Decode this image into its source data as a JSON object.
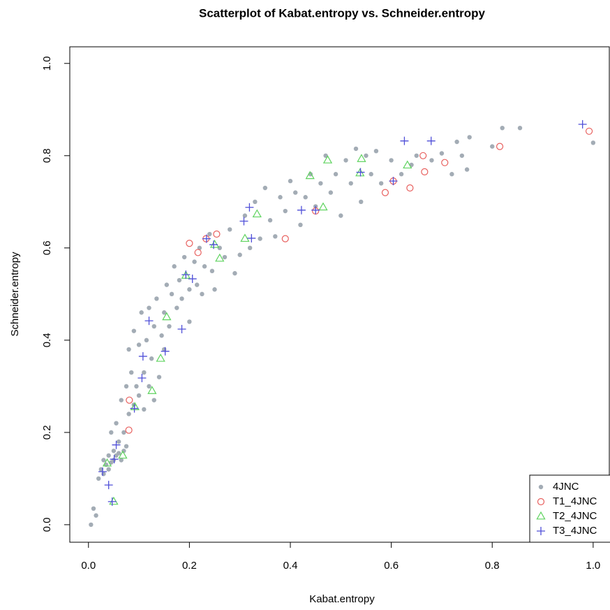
{
  "chart_data": {
    "type": "scatter",
    "title": "Scatterplot of Kabat.entropy vs.  Schneider.entropy",
    "x_label": "Kabat.entropy",
    "y_label": "Schneider.entropy",
    "xlim": [
      -0.037,
      1.032
    ],
    "ylim": [
      -0.038,
      1.036
    ],
    "xticks": [
      {
        "value": 0,
        "label": "0.0"
      },
      0.2,
      0.4,
      0.6,
      0.8,
      {
        "value": 1,
        "label": "1.0"
      }
    ],
    "yticks": [
      {
        "value": 0,
        "label": "0.0"
      },
      0.2,
      0.4,
      0.6,
      0.8,
      {
        "value": 1,
        "label": "1.0"
      }
    ],
    "legend": "bottomright",
    "series": [
      {
        "name": "4JNC",
        "color": "#a3acb5",
        "marker": "dot",
        "x": [
          0.005,
          0.01,
          0.015,
          0.02,
          0.025,
          0.03,
          0.03,
          0.035,
          0.04,
          0.04,
          0.045,
          0.045,
          0.05,
          0.05,
          0.055,
          0.055,
          0.06,
          0.06,
          0.065,
          0.065,
          0.07,
          0.07,
          0.075,
          0.075,
          0.08,
          0.08,
          0.085,
          0.09,
          0.09,
          0.095,
          0.1,
          0.1,
          0.105,
          0.11,
          0.11,
          0.115,
          0.12,
          0.12,
          0.125,
          0.13,
          0.13,
          0.135,
          0.14,
          0.145,
          0.15,
          0.15,
          0.155,
          0.16,
          0.165,
          0.17,
          0.175,
          0.18,
          0.185,
          0.19,
          0.2,
          0.2,
          0.21,
          0.215,
          0.22,
          0.225,
          0.23,
          0.24,
          0.245,
          0.25,
          0.26,
          0.27,
          0.28,
          0.29,
          0.3,
          0.31,
          0.32,
          0.33,
          0.34,
          0.35,
          0.36,
          0.37,
          0.38,
          0.39,
          0.4,
          0.41,
          0.42,
          0.43,
          0.44,
          0.45,
          0.46,
          0.47,
          0.48,
          0.49,
          0.5,
          0.51,
          0.52,
          0.53,
          0.54,
          0.55,
          0.56,
          0.57,
          0.58,
          0.6,
          0.62,
          0.64,
          0.65,
          0.68,
          0.7,
          0.72,
          0.73,
          0.74,
          0.75,
          0.755,
          0.8,
          0.82,
          0.855,
          1.0
        ],
        "values": [
          0.0,
          0.035,
          0.02,
          0.1,
          0.12,
          0.11,
          0.14,
          0.13,
          0.12,
          0.15,
          0.2,
          0.135,
          0.16,
          0.14,
          0.22,
          0.15,
          0.18,
          0.155,
          0.27,
          0.14,
          0.2,
          0.16,
          0.3,
          0.17,
          0.24,
          0.38,
          0.33,
          0.26,
          0.42,
          0.3,
          0.28,
          0.39,
          0.46,
          0.33,
          0.25,
          0.4,
          0.3,
          0.47,
          0.36,
          0.43,
          0.27,
          0.49,
          0.32,
          0.41,
          0.46,
          0.38,
          0.52,
          0.43,
          0.5,
          0.56,
          0.47,
          0.53,
          0.49,
          0.58,
          0.51,
          0.44,
          0.57,
          0.52,
          0.6,
          0.5,
          0.56,
          0.63,
          0.55,
          0.51,
          0.6,
          0.58,
          0.64,
          0.545,
          0.585,
          0.67,
          0.6,
          0.7,
          0.62,
          0.73,
          0.66,
          0.625,
          0.71,
          0.68,
          0.745,
          0.72,
          0.65,
          0.71,
          0.76,
          0.69,
          0.74,
          0.8,
          0.72,
          0.76,
          0.67,
          0.79,
          0.74,
          0.815,
          0.7,
          0.8,
          0.76,
          0.81,
          0.74,
          0.79,
          0.76,
          0.78,
          0.8,
          0.79,
          0.805,
          0.76,
          0.83,
          0.8,
          0.77,
          0.84,
          0.82,
          0.86,
          0.86,
          0.828
        ]
      },
      {
        "name": "T1_4JNC",
        "color": "#e8605e",
        "marker": "circle",
        "x": [
          0.2,
          0.217,
          0.233,
          0.254,
          0.081,
          0.08,
          0.39,
          0.45,
          0.588,
          0.604,
          0.637,
          0.663,
          0.666,
          0.706,
          0.815,
          0.992
        ],
        "values": [
          0.61,
          0.59,
          0.62,
          0.63,
          0.27,
          0.205,
          0.62,
          0.68,
          0.72,
          0.745,
          0.73,
          0.8,
          0.765,
          0.785,
          0.82,
          0.853
        ]
      },
      {
        "name": "T2_4JNC",
        "color": "#5fd35f",
        "marker": "triangle",
        "x": [
          0.05,
          0.037,
          0.068,
          0.092,
          0.126,
          0.143,
          0.155,
          0.193,
          0.25,
          0.26,
          0.31,
          0.334,
          0.439,
          0.465,
          0.474,
          0.541,
          0.538,
          0.632
        ],
        "values": [
          0.05,
          0.133,
          0.15,
          0.255,
          0.29,
          0.36,
          0.45,
          0.54,
          0.607,
          0.577,
          0.62,
          0.673,
          0.756,
          0.688,
          0.79,
          0.793,
          0.762,
          0.779
        ]
      },
      {
        "name": "T3_4JNC",
        "color": "#4f4fd8",
        "marker": "plus",
        "x": [
          0.04,
          0.047,
          0.028,
          0.051,
          0.055,
          0.091,
          0.106,
          0.108,
          0.12,
          0.152,
          0.185,
          0.193,
          0.206,
          0.234,
          0.248,
          0.308,
          0.319,
          0.323,
          0.422,
          0.45,
          0.539,
          0.604,
          0.626,
          0.679,
          0.979
        ],
        "values": [
          0.086,
          0.05,
          0.115,
          0.142,
          0.173,
          0.252,
          0.318,
          0.365,
          0.442,
          0.376,
          0.424,
          0.542,
          0.533,
          0.62,
          0.607,
          0.658,
          0.688,
          0.621,
          0.682,
          0.682,
          0.764,
          0.745,
          0.832,
          0.832,
          0.868
        ]
      }
    ]
  }
}
